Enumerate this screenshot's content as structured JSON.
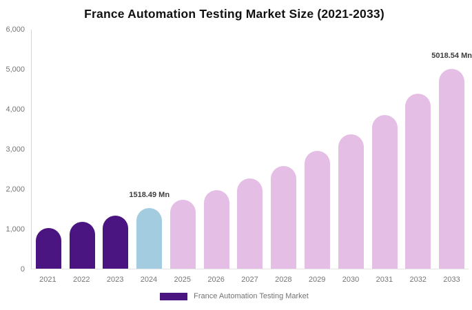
{
  "header": {
    "title": "France Automation Testing Market Size (2021-2033)"
  },
  "chart_data": {
    "type": "bar",
    "title": "France Automation Testing Market Size (2021-2033)",
    "categories": [
      "2021",
      "2022",
      "2023",
      "2024",
      "2025",
      "2026",
      "2027",
      "2028",
      "2029",
      "2030",
      "2031",
      "2032",
      "2033"
    ],
    "series": [
      {
        "name": "France Automation Testing Market",
        "values": [
          1020,
          1170,
          1335,
          1518.49,
          1735,
          1980,
          2265,
          2585,
          2950,
          3370,
          3850,
          4395,
          5018.54
        ]
      }
    ],
    "unit": "Mn",
    "xlabel": "",
    "ylabel": "",
    "ylim": [
      0,
      6000
    ],
    "ytick_labels": [
      "6,000",
      "5,000",
      "4,000",
      "3,000",
      "2,000",
      "1,000",
      "0"
    ],
    "grid": false,
    "legend_position": "bottom",
    "bar_colors": [
      "#4B1581",
      "#4B1581",
      "#4B1581",
      "#A4CCE0",
      "#E5BEE6",
      "#E5BEE6",
      "#E5BEE6",
      "#E5BEE6",
      "#E5BEE6",
      "#E5BEE6",
      "#E5BEE6",
      "#E5BEE6",
      "#E5BEE6"
    ],
    "annotations": [
      {
        "category": "2024",
        "label": "1518.49 Mn"
      },
      {
        "category": "2033",
        "label": "5018.54 Mn"
      }
    ]
  },
  "legend": {
    "items": [
      {
        "label": "France Automation Testing Market",
        "swatch_color": "#4B1581"
      }
    ]
  },
  "colors": {
    "historical_bar": "#4B1581",
    "base_year_bar": "#A4CCE0",
    "forecast_bar": "#E5BEE6",
    "axis_text": "#757575",
    "data_label_text": "#3C3C3C",
    "y_axis_line": "#D4D4D4",
    "baseline": "#E4E4E4",
    "background": "#FFFFFF"
  }
}
